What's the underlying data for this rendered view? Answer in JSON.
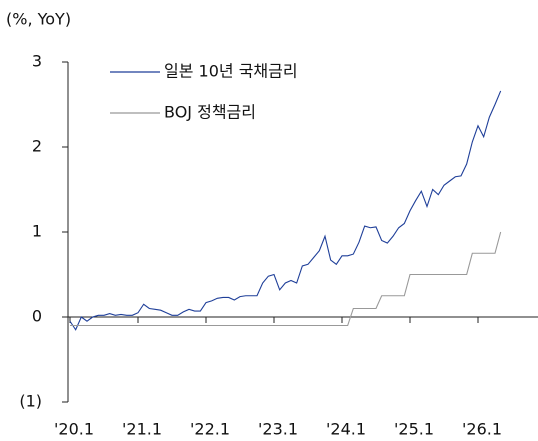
{
  "chart_data": {
    "type": "line",
    "y_axis_label": "(%, YoY)",
    "categories": [
      "'20.1",
      null,
      null,
      null,
      null,
      null,
      null,
      null,
      null,
      null,
      null,
      null,
      "'21.1",
      null,
      null,
      null,
      null,
      null,
      null,
      null,
      null,
      null,
      null,
      null,
      "'22.1",
      null,
      null,
      null,
      null,
      null,
      null,
      null,
      null,
      null,
      null,
      null,
      "'23.1",
      null,
      null,
      null,
      null,
      null,
      null,
      null,
      null,
      null,
      null,
      null,
      "'24.1",
      null,
      null,
      null,
      null,
      null,
      null,
      null,
      null,
      null,
      null,
      null,
      "'25.1",
      null,
      null,
      null,
      null,
      null,
      null,
      null,
      null,
      null,
      null,
      null,
      "'26.1",
      null,
      null,
      null,
      null
    ],
    "series": [
      {
        "name": "일본 10년 국채금리",
        "color": "#1f3f99",
        "values": [
          -0.05,
          -0.15,
          0.0,
          -0.05,
          0.0,
          0.02,
          0.02,
          0.04,
          0.02,
          0.03,
          0.02,
          0.02,
          0.05,
          0.15,
          0.1,
          0.09,
          0.08,
          0.05,
          0.02,
          0.02,
          0.06,
          0.09,
          0.07,
          0.07,
          0.17,
          0.19,
          0.22,
          0.23,
          0.23,
          0.2,
          0.24,
          0.25,
          0.25,
          0.25,
          0.4,
          0.48,
          0.5,
          0.32,
          0.4,
          0.43,
          0.4,
          0.6,
          0.62,
          0.7,
          0.78,
          0.95,
          0.67,
          0.62,
          0.72,
          0.72,
          0.74,
          0.88,
          1.07,
          1.05,
          1.06,
          0.9,
          0.87,
          0.95,
          1.05,
          1.1,
          1.25,
          1.37,
          1.48,
          1.3,
          1.5,
          1.44,
          1.55,
          1.6,
          1.65,
          1.66,
          1.8,
          2.06,
          2.25,
          2.12,
          2.35,
          2.5,
          2.66
        ]
      },
      {
        "name": "BOJ 정책금리",
        "color": "#999999",
        "values": [
          -0.1,
          -0.1,
          -0.1,
          -0.1,
          -0.1,
          -0.1,
          -0.1,
          -0.1,
          -0.1,
          -0.1,
          -0.1,
          -0.1,
          -0.1,
          -0.1,
          -0.1,
          -0.1,
          -0.1,
          -0.1,
          -0.1,
          -0.1,
          -0.1,
          -0.1,
          -0.1,
          -0.1,
          -0.1,
          -0.1,
          -0.1,
          -0.1,
          -0.1,
          -0.1,
          -0.1,
          -0.1,
          -0.1,
          -0.1,
          -0.1,
          -0.1,
          -0.1,
          -0.1,
          -0.1,
          -0.1,
          -0.1,
          -0.1,
          -0.1,
          -0.1,
          -0.1,
          -0.1,
          -0.1,
          -0.1,
          -0.1,
          -0.1,
          0.1,
          0.1,
          0.1,
          0.1,
          0.1,
          0.25,
          0.25,
          0.25,
          0.25,
          0.25,
          0.5,
          0.5,
          0.5,
          0.5,
          0.5,
          0.5,
          0.5,
          0.5,
          0.5,
          0.5,
          0.5,
          0.75,
          0.75,
          0.75,
          0.75,
          0.75,
          1.0
        ]
      }
    ],
    "ylim": [
      -1,
      3
    ],
    "yticks": [
      {
        "value": -1,
        "label": "(1)"
      },
      0,
      1,
      2,
      3
    ],
    "legend": "upper left",
    "grid": false
  }
}
